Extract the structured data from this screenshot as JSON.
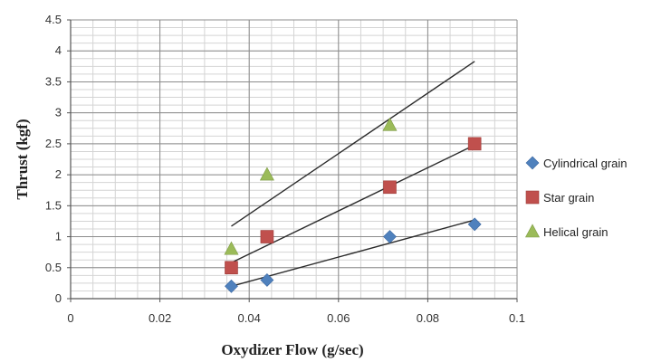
{
  "chart_data": {
    "type": "scatter",
    "title": "",
    "xlabel": "Oxydizer Flow (g/sec)",
    "ylabel": "Thrust (kgf)",
    "xlim": [
      0,
      0.1
    ],
    "ylim": [
      0,
      4.5
    ],
    "x_ticks": [
      "0",
      "0.02",
      "0.04",
      "0.06",
      "0.08",
      "0.1"
    ],
    "y_ticks": [
      "0",
      "0.5",
      "1",
      "1.5",
      "2",
      "2.5",
      "3",
      "3.5",
      "4",
      "4.5"
    ],
    "grid": true,
    "legend_position": "right",
    "series": [
      {
        "name": "Cylindrical grain",
        "marker": "diamond",
        "color": "#4f81bd",
        "x": [
          0.036,
          0.044,
          0.0715,
          0.0905
        ],
        "y": [
          0.2,
          0.3,
          1.0,
          1.2
        ],
        "trendline": [
          [
            0.036,
            0.2
          ],
          [
            0.0905,
            1.27
          ]
        ]
      },
      {
        "name": "Star grain",
        "marker": "square",
        "color": "#c0504d",
        "x": [
          0.036,
          0.044,
          0.0715,
          0.0905
        ],
        "y": [
          0.5,
          1.0,
          1.8,
          2.5
        ],
        "trendline": [
          [
            0.036,
            0.58
          ],
          [
            0.0905,
            2.48
          ]
        ]
      },
      {
        "name": "Helical grain",
        "marker": "triangle",
        "color": "#9bbb59",
        "x": [
          0.036,
          0.044,
          0.0715
        ],
        "y": [
          0.8,
          2.0,
          2.8
        ],
        "trendline": [
          [
            0.036,
            1.17
          ],
          [
            0.0905,
            3.83
          ]
        ]
      }
    ]
  }
}
